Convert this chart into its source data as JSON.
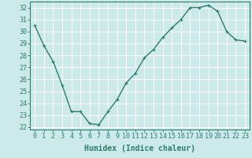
{
  "x": [
    0,
    1,
    2,
    3,
    4,
    5,
    6,
    7,
    8,
    9,
    10,
    11,
    12,
    13,
    14,
    15,
    16,
    17,
    18,
    19,
    20,
    21,
    22,
    23
  ],
  "y": [
    30.5,
    28.8,
    27.5,
    25.5,
    23.3,
    23.3,
    22.3,
    22.2,
    23.3,
    24.3,
    25.7,
    26.5,
    27.8,
    28.5,
    29.5,
    30.3,
    31.0,
    32.0,
    32.0,
    32.2,
    31.7,
    30.0,
    29.3,
    29.2
  ],
  "line_color": "#2d7d6e",
  "marker": "+",
  "marker_size": 3,
  "bg_color": "#cceaea",
  "grid_color": "#ffffff",
  "tick_color": "#2d7d6e",
  "xlabel": "Humidex (Indice chaleur)",
  "xlabel_fontsize": 7,
  "ylim": [
    21.8,
    32.5
  ],
  "yticks": [
    22,
    23,
    24,
    25,
    26,
    27,
    28,
    29,
    30,
    31,
    32
  ],
  "xticks": [
    0,
    1,
    2,
    3,
    4,
    5,
    6,
    7,
    8,
    9,
    10,
    11,
    12,
    13,
    14,
    15,
    16,
    17,
    18,
    19,
    20,
    21,
    22,
    23
  ],
  "xlim": [
    -0.5,
    23.5
  ],
  "tick_labelsize": 6,
  "line_width": 1.0
}
